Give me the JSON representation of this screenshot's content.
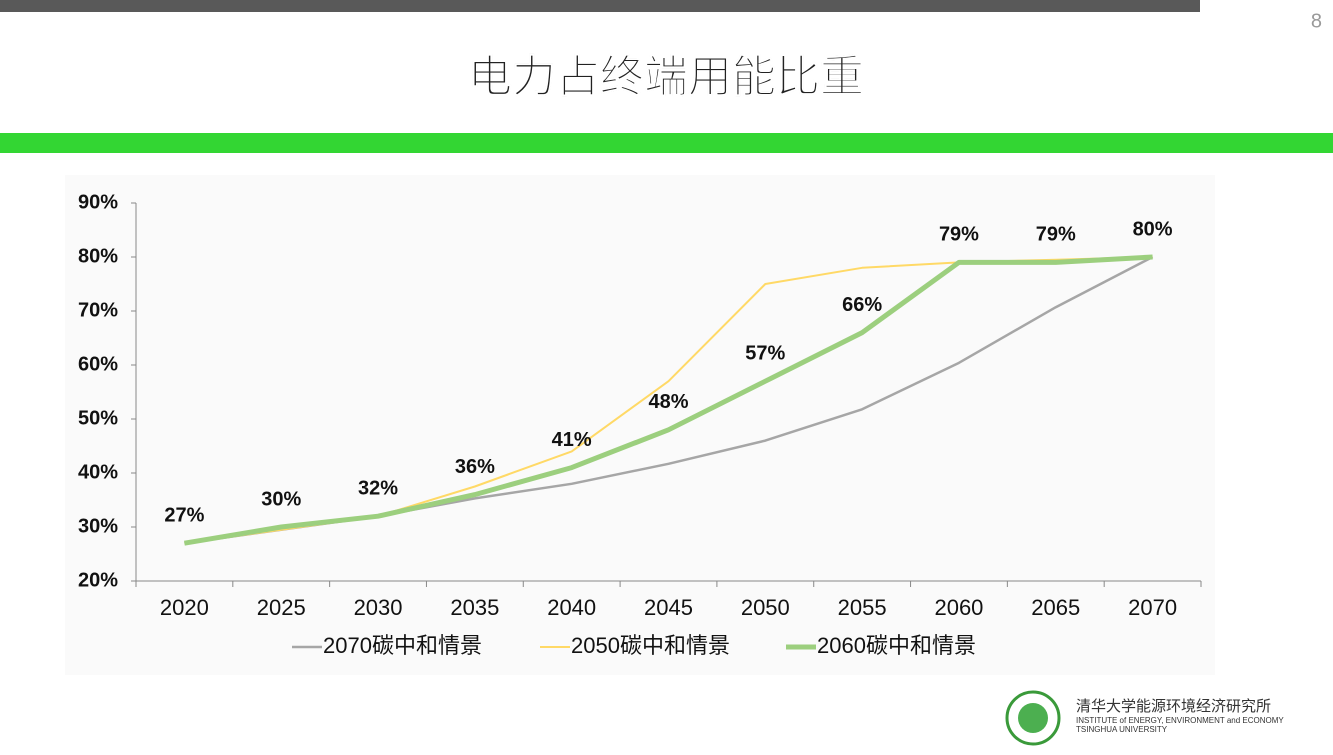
{
  "slide": {
    "page_number": "8",
    "logo_cn": "清华大学能源环境经济研究所",
    "logo_en1": "INSTITUTE of ENERGY, ENVIRONMENT and ECONOMY",
    "logo_en2": "TSINGHUA UNIVERSITY"
  },
  "chart_data": {
    "type": "line",
    "title": "电力占终端用能比重",
    "categories": [
      "2020",
      "2025",
      "2030",
      "2035",
      "2040",
      "2045",
      "2050",
      "2055",
      "2060",
      "2065",
      "2070"
    ],
    "series": [
      {
        "name": "2070碳中和情景",
        "color": "#a6a6a6",
        "values": [
          27,
          29.5,
          32,
          35.3,
          38,
          41.7,
          46,
          51.8,
          60.4,
          70.7,
          80
        ]
      },
      {
        "name": "2050碳中和情景",
        "color": "#ffd966",
        "values": [
          27,
          29.5,
          32,
          37.5,
          44,
          57,
          75,
          78,
          79,
          79.5,
          80
        ]
      },
      {
        "name": "2060碳中和情景",
        "color": "#9ccf7e",
        "values": [
          27,
          30,
          32,
          36,
          41,
          48,
          57,
          66,
          79,
          79,
          80
        ],
        "value_labels": [
          "27%",
          "30%",
          "32%",
          "36%",
          "41%",
          "48%",
          "57%",
          "66%",
          "79%",
          "79%",
          "80%"
        ]
      }
    ],
    "ylim": [
      20,
      90
    ],
    "yticks": [
      {
        "value": 20,
        "label": "20%"
      },
      {
        "value": 30,
        "label": "30%"
      },
      {
        "value": 40,
        "label": "40%"
      },
      {
        "value": 50,
        "label": "50%"
      },
      {
        "value": 60,
        "label": "60%"
      },
      {
        "value": 70,
        "label": "70%"
      },
      {
        "value": 80,
        "label": "80%"
      },
      {
        "value": 90,
        "label": "90%"
      }
    ],
    "legend": "bottom"
  }
}
